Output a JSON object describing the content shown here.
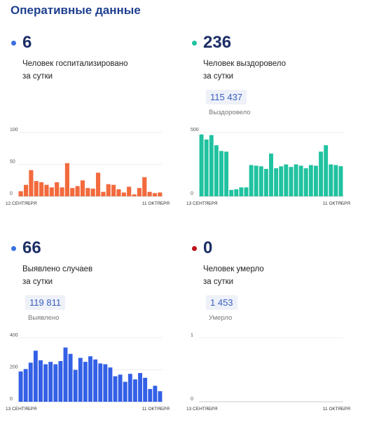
{
  "title": "Оперативные данные",
  "panels": [
    {
      "big": "6",
      "dot_color": "#3b6fe0",
      "desc1": "Человек госпитализировано",
      "desc2": "за сутки",
      "total": "",
      "total_label": ""
    },
    {
      "big": "236",
      "dot_color": "#20c2a0",
      "desc1": "Человек выздоровело",
      "desc2": "за сутки",
      "total": "115 437",
      "total_label": "Выздоровело"
    },
    {
      "big": "66",
      "dot_color": "#3b6fe0",
      "desc1": "Выявлено случаев",
      "desc2": "за сутки",
      "total": "119 811",
      "total_label": "Выявлено"
    },
    {
      "big": "0",
      "dot_color": "#c0101a",
      "desc1": "Человек умерло",
      "desc2": "за сутки",
      "total": "1 453",
      "total_label": "Умерло"
    }
  ],
  "chart_data": [
    {
      "type": "bar",
      "color": "#f26a3d",
      "x_start_label": "12 СЕНТЯБРЯ",
      "x_end_label": "11 ОКТЯБРЯ",
      "yticks": [
        0,
        50,
        100
      ],
      "ylim": [
        0,
        100
      ],
      "values": [
        8,
        18,
        41,
        24,
        22,
        18,
        14,
        22,
        14,
        52,
        13,
        16,
        25,
        13,
        12,
        37,
        7,
        19,
        18,
        11,
        6,
        15,
        3,
        13,
        30,
        7,
        5,
        6
      ]
    },
    {
      "type": "bar",
      "color": "#20c2a0",
      "x_start_label": "13 СЕНТЯБРЯ",
      "x_end_label": "11 ОКТЯБРЯ",
      "yticks": [
        0,
        500
      ],
      "ylim": [
        0,
        500
      ],
      "values": [
        485,
        445,
        480,
        400,
        355,
        350,
        50,
        55,
        70,
        70,
        245,
        240,
        235,
        215,
        335,
        220,
        235,
        250,
        230,
        250,
        240,
        220,
        245,
        240,
        350,
        400,
        250,
        245,
        236
      ]
    },
    {
      "type": "bar",
      "color": "#3360e6",
      "x_start_label": "13 СЕНТЯБРЯ",
      "x_end_label": "11 ОКТЯБРЯ",
      "yticks": [
        0,
        200,
        400
      ],
      "ylim": [
        0,
        400
      ],
      "values": [
        190,
        205,
        245,
        320,
        260,
        235,
        250,
        235,
        255,
        340,
        300,
        200,
        275,
        250,
        285,
        265,
        240,
        235,
        215,
        160,
        170,
        125,
        175,
        140,
        180,
        150,
        80,
        100,
        66
      ]
    },
    {
      "type": "bar",
      "color": "#3360e6",
      "x_start_label": "13 СЕНТЯБРЯ",
      "x_end_label": "11 ОКТЯБРЯ",
      "yticks": [
        0,
        1
      ],
      "ylim": [
        0,
        1
      ],
      "values": []
    }
  ]
}
